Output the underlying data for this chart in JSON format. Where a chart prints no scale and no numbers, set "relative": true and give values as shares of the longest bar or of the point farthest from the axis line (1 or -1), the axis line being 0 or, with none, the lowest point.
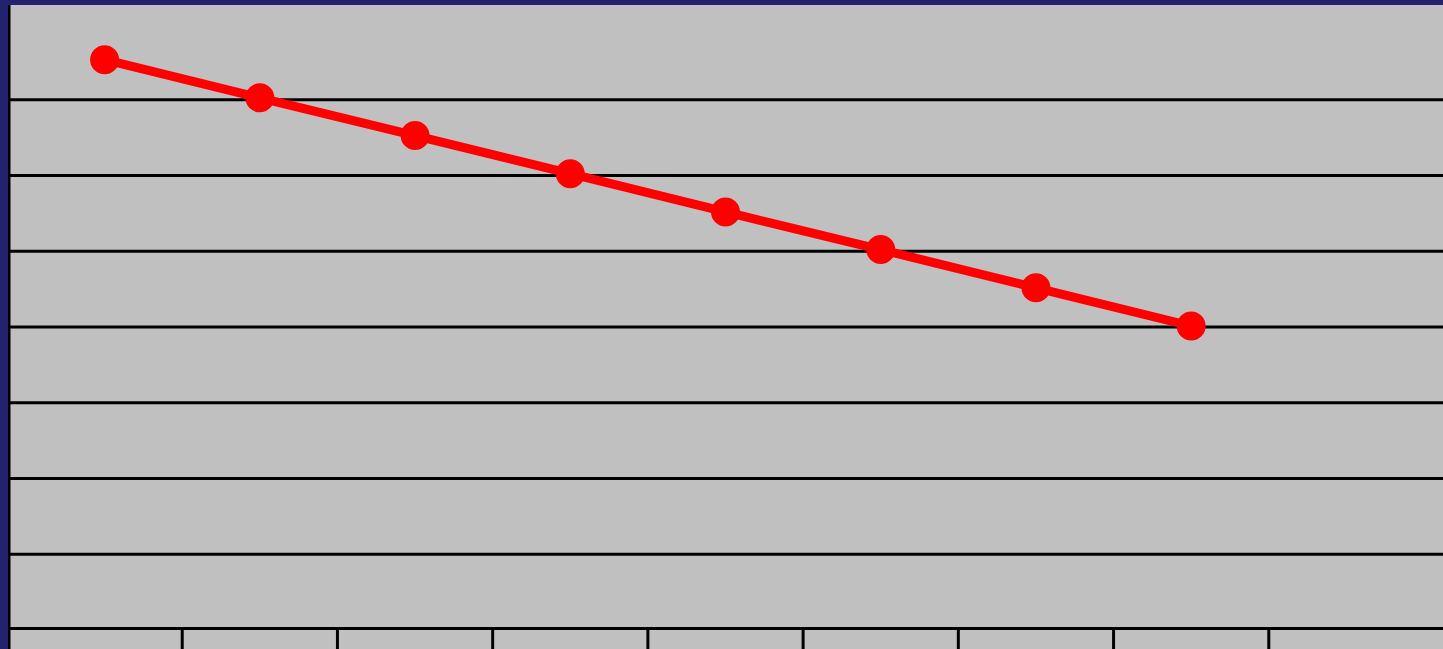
{
  "chart_data": {
    "type": "line",
    "relative": true,
    "categories": [
      null,
      null,
      null,
      null,
      null,
      null,
      null,
      null,
      null
    ],
    "series": [
      {
        "color": "#ff0000",
        "values": [
          1,
          0.933,
          0.867,
          0.8,
          0.733,
          0.667,
          0.6,
          0.533,
          null
        ]
      }
    ],
    "grid": "y",
    "legend": false,
    "marker": "circle",
    "line_style": "solid"
  }
}
